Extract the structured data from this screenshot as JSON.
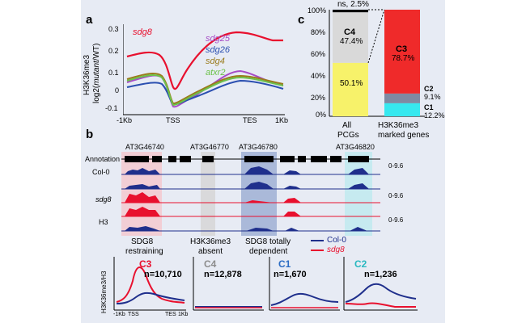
{
  "panel_a": {
    "label": "a",
    "ylabel_line1": "H3K36me3",
    "ylabel_line2": "log2(",
    "ylabel_italic": "mutant",
    "ylabel_line2_end": "/WT)",
    "yticks": [
      "0.3",
      "0.2",
      "0.1",
      "0",
      "-0.1"
    ],
    "xticks": [
      "-1Kb",
      "TSS",
      "TES",
      "1Kb"
    ],
    "series": [
      {
        "name": "sdg8",
        "color": "#e8102e"
      },
      {
        "name": "sdg25",
        "color": "#a64cc6"
      },
      {
        "name": "sdg26",
        "color": "#2b4fb0"
      },
      {
        "name": "sdg4",
        "color": "#9a7b1c"
      },
      {
        "name": "atxr2",
        "color": "#6cc24a"
      }
    ]
  },
  "panel_c": {
    "label": "c",
    "yticks": [
      "100%",
      "80%",
      "60%",
      "40%",
      "20%",
      "0%"
    ],
    "top_note": "ns, 2.5%",
    "bar1": {
      "segments": [
        {
          "name": "C4",
          "value": "47.4%",
          "color": "#d9d9d9"
        },
        {
          "name": "",
          "value": "50.1%",
          "color": "#f7f26a"
        }
      ],
      "label_line1": "All",
      "label_line2": "PCGs"
    },
    "bar2": {
      "segments": [
        {
          "name": "C3",
          "value": "78.7%",
          "color": "#ef2a2a"
        },
        {
          "name": "C2",
          "value": "9.1%",
          "color": "#7f8aa2"
        },
        {
          "name": "C1",
          "value": "12.2%",
          "color": "#36e8ef"
        }
      ],
      "label_line1": "H3K36me3",
      "label_line2": "marked genes"
    }
  },
  "panel_b": {
    "label": "b",
    "genes": [
      "AT3G46740",
      "AT3G46770",
      "AT3G46780",
      "AT3G46820"
    ],
    "track_labels": {
      "annotation": "Annotation",
      "col0": "Col-0",
      "sdg8": "sdg8",
      "h3": "H3"
    },
    "range_label": "0-9.6",
    "region_labels": [
      {
        "line1": "SDG8",
        "line2": "restraining"
      },
      {
        "line1": "H3K36me3",
        "line2": "absent"
      },
      {
        "line1": "SDG8 totally",
        "line2": "dependent"
      }
    ],
    "legend": [
      {
        "name": "Col-0",
        "color": "#1f2f8c"
      },
      {
        "name": "sdg8",
        "color": "#e8102e"
      }
    ]
  },
  "panel_bottom": {
    "ylabel": "H3K36me3/H3",
    "xticks": [
      "-1Kb",
      "TSS",
      "TES",
      "1Kb"
    ],
    "clusters": [
      {
        "name": "C3",
        "n": "n=10,710",
        "color": "#e8102e"
      },
      {
        "name": "C4",
        "n": "n=12,878",
        "color": "#8c8c8c"
      },
      {
        "name": "C1",
        "n": "n=1,670",
        "color": "#2b6cc4"
      },
      {
        "name": "C2",
        "n": "n=1,236",
        "color": "#29b8c0"
      }
    ]
  }
}
